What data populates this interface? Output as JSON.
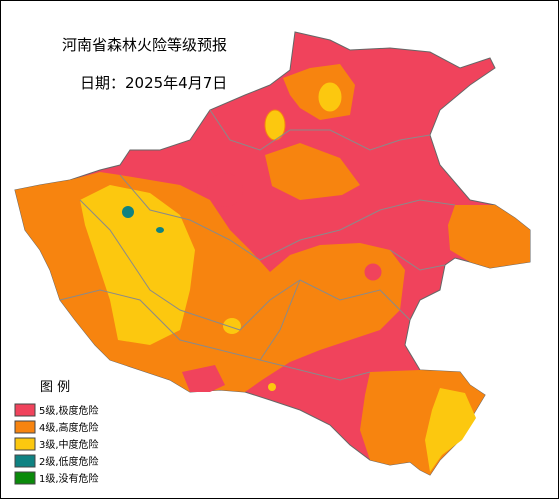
{
  "title": "河南省森林火险等级预报",
  "date": "日期：2025年4月7日",
  "legend": {
    "title": "图  例",
    "items": [
      {
        "label": "5级,极度危险",
        "color": "#f0435c"
      },
      {
        "label": "4级,高度危险",
        "color": "#f7840f"
      },
      {
        "label": "3级,中度危险",
        "color": "#fcc80f"
      },
      {
        "label": "2级,低度危险",
        "color": "#0f8282"
      },
      {
        "label": "1级,没有危险",
        "color": "#0a8a0a"
      }
    ]
  }
}
